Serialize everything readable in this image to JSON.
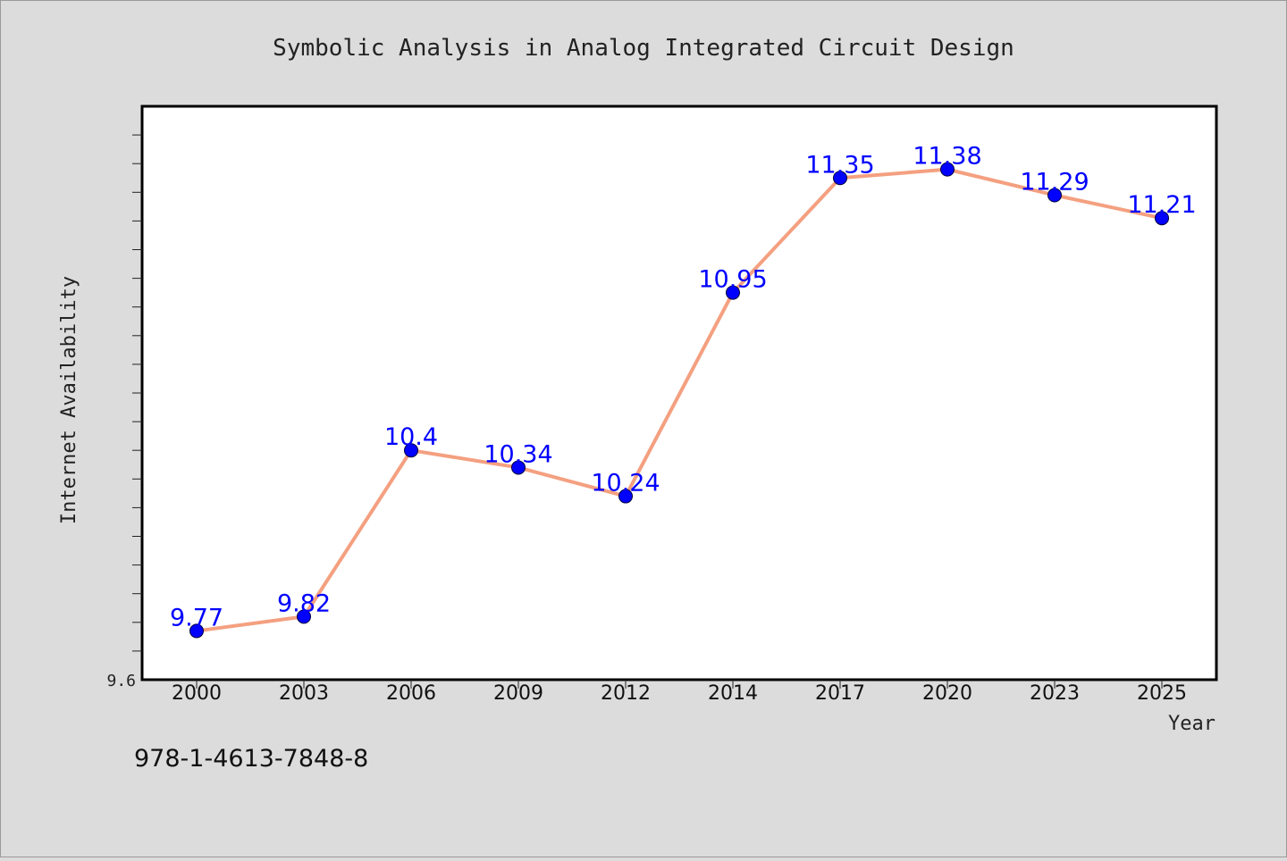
{
  "chart_data": {
    "type": "line",
    "title": "Symbolic Analysis in Analog Integrated Circuit Design",
    "xlabel": "Year",
    "ylabel": "Internet Availability",
    "categories": [
      "2000",
      "2003",
      "2006",
      "2009",
      "2012",
      "2014",
      "2017",
      "2020",
      "2023",
      "2025"
    ],
    "series": [
      {
        "values": [
          9.77,
          9.82,
          10.4,
          10.34,
          10.24,
          10.95,
          11.35,
          11.38,
          11.29,
          11.21
        ],
        "data_labels": [
          "9.77",
          "9.82",
          "10.4",
          "10.34",
          "10.24",
          "10.95",
          "11.35",
          "11.38",
          "11.29",
          "11.21"
        ],
        "line_color": "#f4a080",
        "marker_color": "#0000ff"
      }
    ],
    "ylim": [
      9.6,
      11.6
    ],
    "y_tick_labels": [
      "9.6"
    ],
    "label_color": "#0000ff",
    "grid": false,
    "legend": "none"
  },
  "footer": {
    "isbn": "978-1-4613-7848-8"
  }
}
